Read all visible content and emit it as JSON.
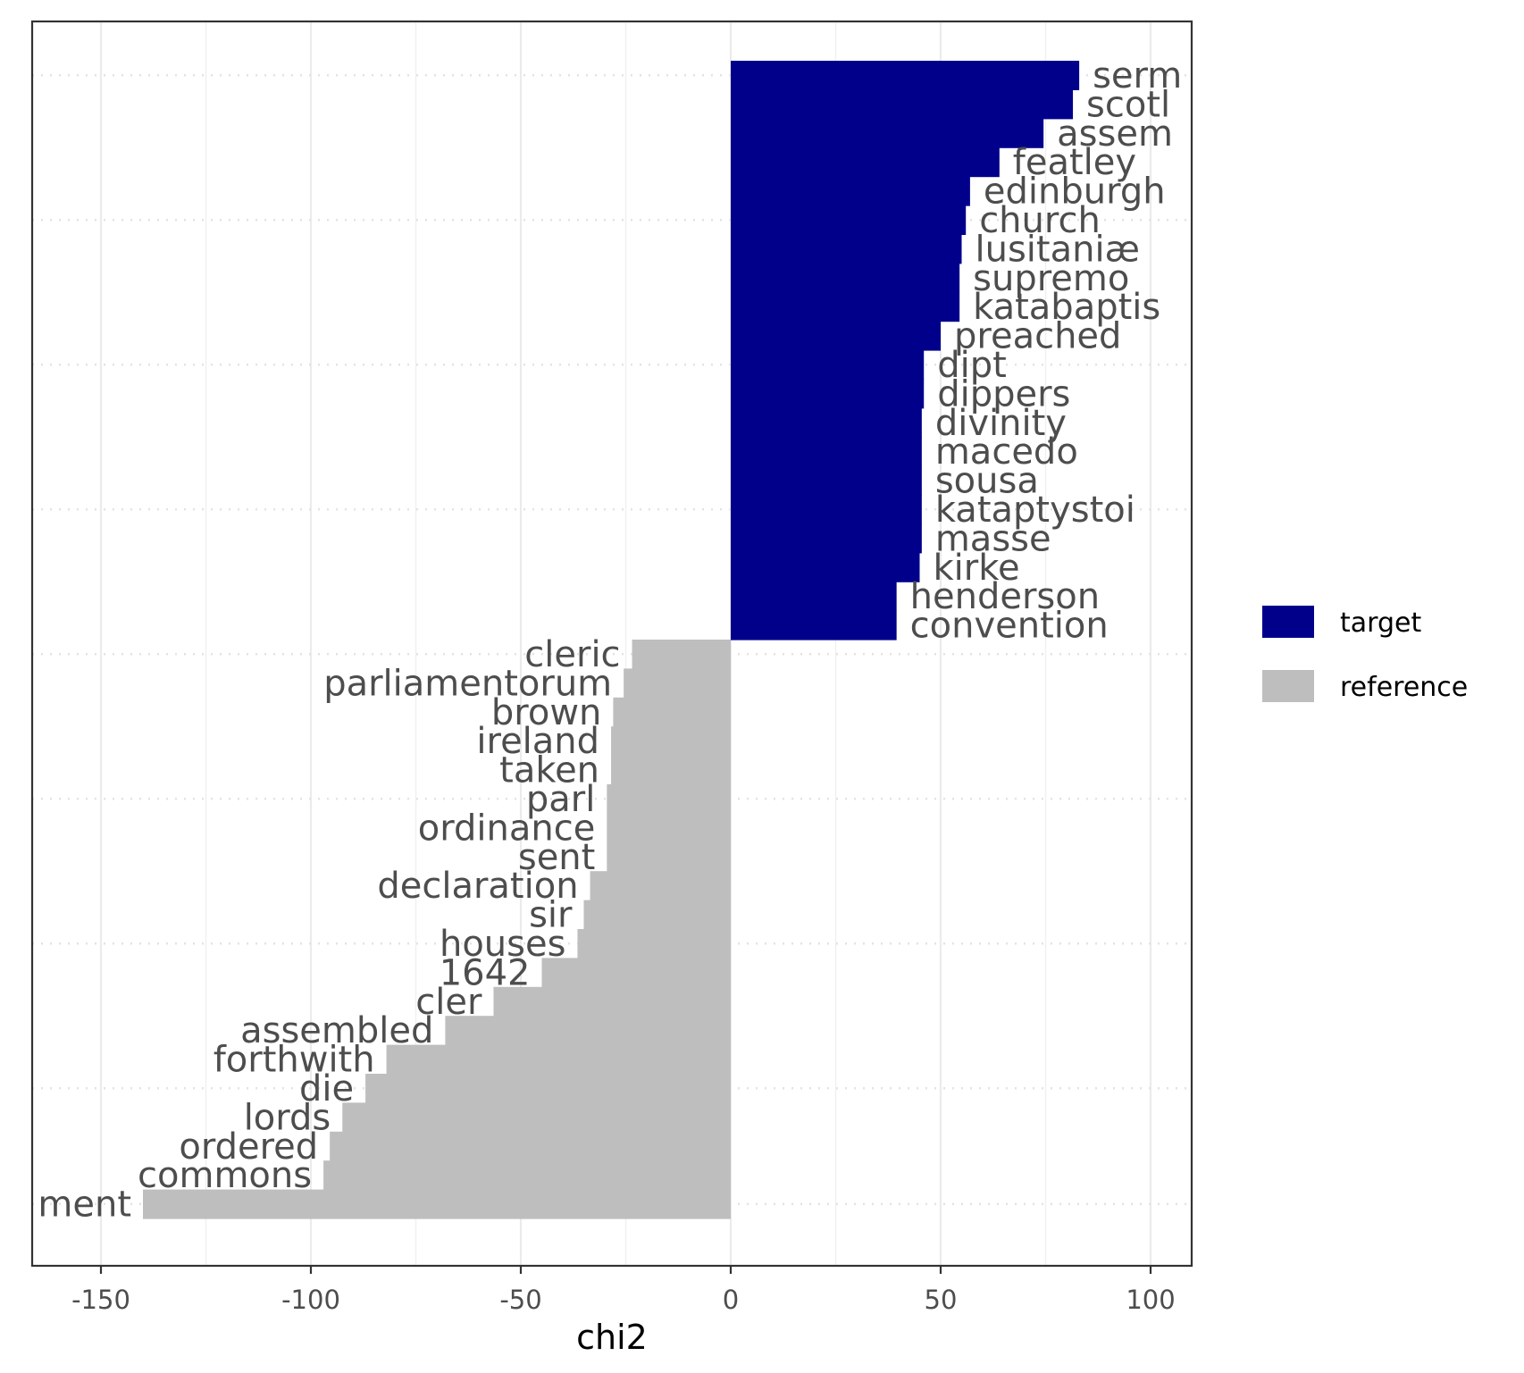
{
  "chart_data": {
    "type": "bar",
    "orientation": "horizontal",
    "xlabel": "chi2",
    "ylabel": "",
    "title": "",
    "xlim": [
      -165,
      110
    ],
    "x_ticks": [
      -150,
      -100,
      -50,
      0,
      50,
      100
    ],
    "x_tick_labels": [
      "-150",
      "-100",
      "-50",
      "0",
      "50",
      "100"
    ],
    "grid": true,
    "legend_position": "right",
    "colors": {
      "target": "#00008b",
      "reference": "#bebebe",
      "text": "#4d4d4d"
    },
    "legend": [
      {
        "key": "target",
        "label": "target",
        "color": "#00008b"
      },
      {
        "key": "reference",
        "label": "reference",
        "color": "#bebebe"
      }
    ],
    "series": [
      {
        "name": "target",
        "color": "#00008b"
      },
      {
        "name": "reference",
        "color": "#bebebe"
      }
    ],
    "bars": [
      {
        "term": "serm",
        "value": 83,
        "group": "target"
      },
      {
        "term": "scotl",
        "value": 81.5,
        "group": "target"
      },
      {
        "term": "assem",
        "value": 74.5,
        "group": "target"
      },
      {
        "term": "featley",
        "value": 64,
        "group": "target"
      },
      {
        "term": "edinburgh",
        "value": 57,
        "group": "target"
      },
      {
        "term": "church",
        "value": 56,
        "group": "target"
      },
      {
        "term": "lusitaniæ",
        "value": 55,
        "group": "target"
      },
      {
        "term": "supremo",
        "value": 54.5,
        "group": "target"
      },
      {
        "term": "katabaptis",
        "value": 54.5,
        "group": "target"
      },
      {
        "term": "preached",
        "value": 50,
        "group": "target"
      },
      {
        "term": "dipt",
        "value": 46,
        "group": "target"
      },
      {
        "term": "dippers",
        "value": 46,
        "group": "target"
      },
      {
        "term": "divinity",
        "value": 45.5,
        "group": "target"
      },
      {
        "term": "macedo",
        "value": 45.5,
        "group": "target"
      },
      {
        "term": "sousa",
        "value": 45.5,
        "group": "target"
      },
      {
        "term": "kataptystoi",
        "value": 45.5,
        "group": "target"
      },
      {
        "term": "masse",
        "value": 45.5,
        "group": "target"
      },
      {
        "term": "kirke",
        "value": 45,
        "group": "target"
      },
      {
        "term": "henderson",
        "value": 39.5,
        "group": "target"
      },
      {
        "term": "convention",
        "value": 39.5,
        "group": "target"
      },
      {
        "term": "cleric",
        "value": -23.5,
        "group": "reference"
      },
      {
        "term": "parliamentorum",
        "value": -25.5,
        "group": "reference"
      },
      {
        "term": "brown",
        "value": -28,
        "group": "reference"
      },
      {
        "term": "ireland",
        "value": -28.5,
        "group": "reference"
      },
      {
        "term": "taken",
        "value": -28.5,
        "group": "reference"
      },
      {
        "term": "parl",
        "value": -29.5,
        "group": "reference"
      },
      {
        "term": "ordinance",
        "value": -29.5,
        "group": "reference"
      },
      {
        "term": "sent",
        "value": -29.5,
        "group": "reference"
      },
      {
        "term": "declaration",
        "value": -33.5,
        "group": "reference"
      },
      {
        "term": "sir",
        "value": -35,
        "group": "reference"
      },
      {
        "term": "houses",
        "value": -36.5,
        "group": "reference"
      },
      {
        "term": "1642",
        "value": -45,
        "group": "reference"
      },
      {
        "term": "cler",
        "value": -56.5,
        "group": "reference"
      },
      {
        "term": "assembled",
        "value": -68,
        "group": "reference"
      },
      {
        "term": "forthwith",
        "value": -82,
        "group": "reference"
      },
      {
        "term": "die",
        "value": -87,
        "group": "reference"
      },
      {
        "term": "lords",
        "value": -92.5,
        "group": "reference"
      },
      {
        "term": "ordered",
        "value": -95.5,
        "group": "reference"
      },
      {
        "term": "commons",
        "value": -97,
        "group": "reference"
      },
      {
        "term": "ment",
        "value": -140,
        "group": "reference"
      }
    ]
  }
}
